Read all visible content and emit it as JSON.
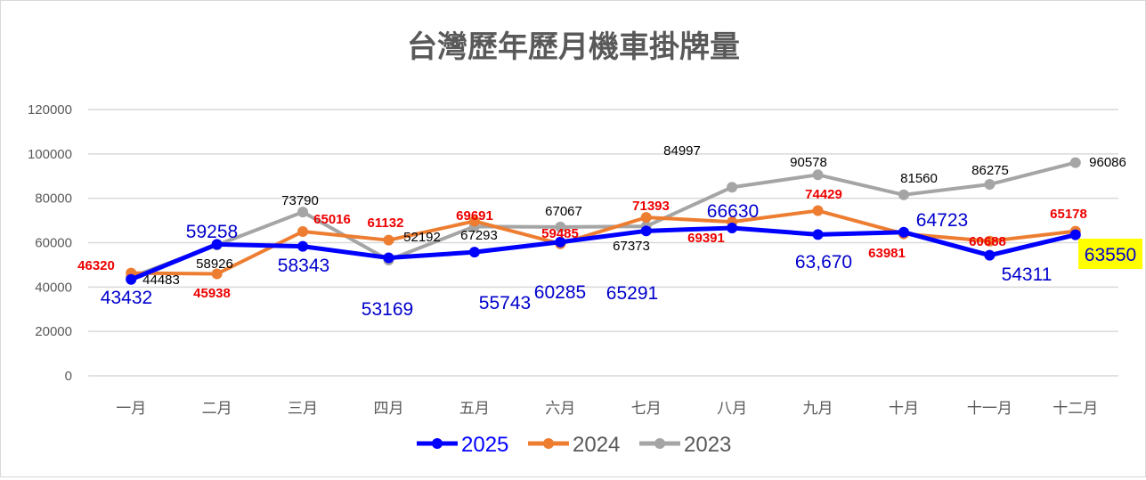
{
  "chart_data": {
    "type": "line",
    "title": "台灣歷年歷月機車掛牌量",
    "categories": [
      "一月",
      "二月",
      "三月",
      "四月",
      "五月",
      "六月",
      "七月",
      "八月",
      "九月",
      "十月",
      "十一月",
      "十二月"
    ],
    "ylim": [
      0,
      120000
    ],
    "yticks": [
      "0",
      "20000",
      "40000",
      "60000",
      "80000",
      "100000",
      "120000"
    ],
    "grid": true,
    "legend_position": "bottom",
    "series": [
      {
        "name": "2025",
        "color": "#0000ff",
        "label_color": "#0000cc",
        "values": [
          43432,
          59258,
          58343,
          53169,
          55743,
          60285,
          65291,
          66630,
          63670,
          64723,
          54311,
          63550
        ],
        "labels": [
          "43432",
          "59258",
          "58343",
          "53169",
          "55743",
          "60285",
          "65291",
          "66630",
          "63,670",
          "64723",
          "54311",
          "63550"
        ]
      },
      {
        "name": "2024",
        "color": "#ed7d31",
        "label_color": "#ee0000",
        "values": [
          46320,
          45938,
          65016,
          61132,
          69691,
          59485,
          71393,
          69391,
          74429,
          63981,
          60688,
          65178
        ],
        "labels": [
          "46320",
          "45938",
          "65016",
          "61132",
          "69691",
          "59485",
          "71393",
          "69391",
          "74429",
          "63981",
          "60688",
          "65178"
        ]
      },
      {
        "name": "2023",
        "color": "#a5a5a5",
        "label_color": "#000000",
        "values": [
          44483,
          58926,
          73790,
          52192,
          67293,
          67067,
          67373,
          84997,
          90578,
          81560,
          86275,
          96086
        ],
        "labels": [
          "44483",
          "58926",
          "73790",
          "52192",
          "67293",
          "67067",
          "67373",
          "84997",
          "90578",
          "81560",
          "86275",
          "96086"
        ]
      }
    ],
    "highlight": {
      "label": "63550",
      "background": "#ffff00"
    }
  }
}
